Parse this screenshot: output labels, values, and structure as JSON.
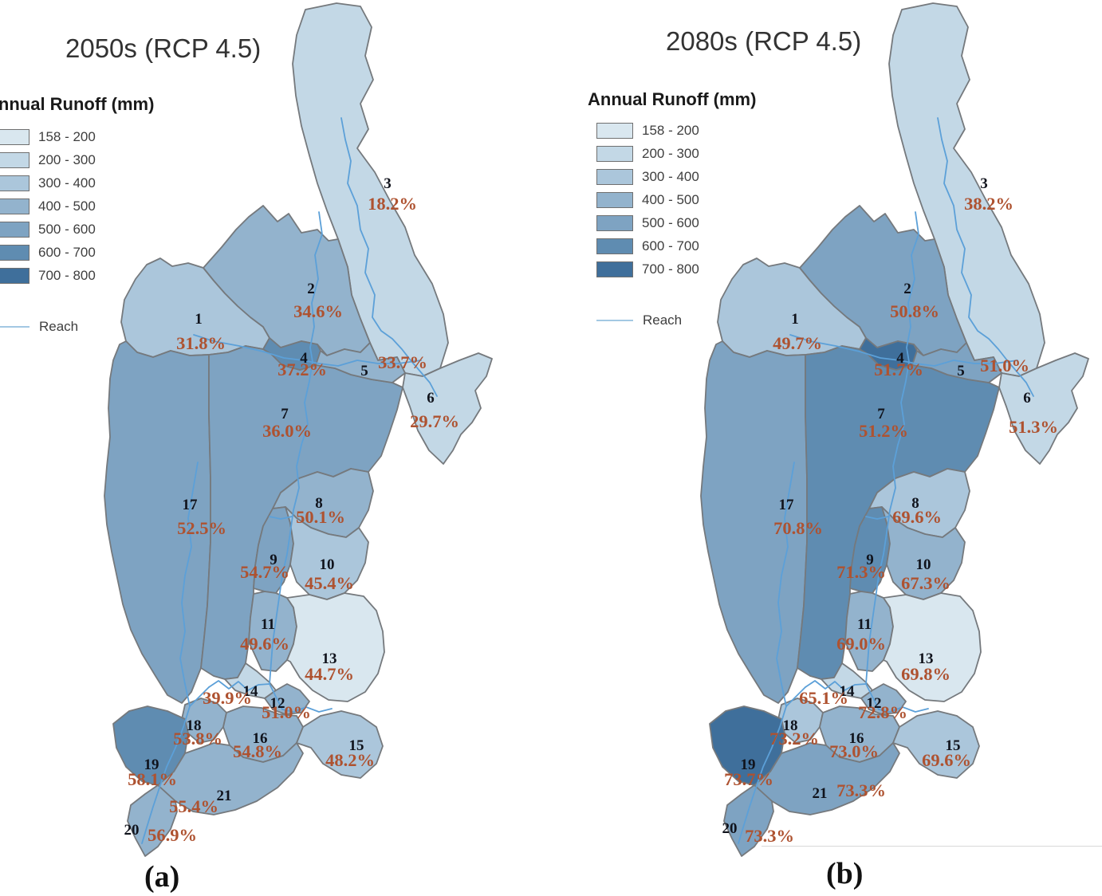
{
  "figure": {
    "legend_title": "Annual Runoff (mm)",
    "reach_label": "Reach",
    "legend_classes": [
      {
        "range": "158 - 200",
        "color": "#d9e7ef"
      },
      {
        "range": "200 - 300",
        "color": "#c3d8e6"
      },
      {
        "range": "300 - 400",
        "color": "#abc6db"
      },
      {
        "range": "400 - 500",
        "color": "#93b3cd"
      },
      {
        "range": "500 - 600",
        "color": "#7ea3c2"
      },
      {
        "range": "600 - 700",
        "color": "#5f8cb1"
      },
      {
        "range": "700 - 800",
        "color": "#3f6f9b"
      }
    ],
    "colors": {
      "region_border": "#75797d",
      "reach_line": "#5ca0d8",
      "legend_reach_line": "#a3c8e3",
      "subbasin_number": "#10131c",
      "percent_label": "#ae5230"
    },
    "panels": [
      {
        "title": "2050s (RCP 4.5)",
        "caption": "(a)",
        "subbasins": [
          {
            "n": "1",
            "pct": "31.8%",
            "cls": 2
          },
          {
            "n": "2",
            "pct": "34.6%",
            "cls": 3
          },
          {
            "n": "3",
            "pct": "18.2%",
            "cls": 1
          },
          {
            "n": "4",
            "pct": "37.2%",
            "cls": 5
          },
          {
            "n": "5",
            "pct": "33.7%",
            "cls": 3
          },
          {
            "n": "6",
            "pct": "29.7%",
            "cls": 1
          },
          {
            "n": "7",
            "pct": "36.0%",
            "cls": 4
          },
          {
            "n": "8",
            "pct": "50.1%",
            "cls": 3
          },
          {
            "n": "9",
            "pct": "54.7%",
            "cls": 4
          },
          {
            "n": "10",
            "pct": "45.4%",
            "cls": 2
          },
          {
            "n": "11",
            "pct": "49.6%",
            "cls": 3
          },
          {
            "n": "12",
            "pct": "51.0%",
            "cls": 3
          },
          {
            "n": "13",
            "pct": "44.7%",
            "cls": 0
          },
          {
            "n": "14",
            "pct": "39.9%",
            "cls": 1
          },
          {
            "n": "15",
            "pct": "48.2%",
            "cls": 2
          },
          {
            "n": "16",
            "pct": "54.8%",
            "cls": 3
          },
          {
            "n": "17",
            "pct": "52.5%",
            "cls": 4
          },
          {
            "n": "18",
            "pct": "53.8%",
            "cls": 3
          },
          {
            "n": "19",
            "pct": "58.1%",
            "cls": 5
          },
          {
            "n": "20",
            "pct": "56.9%",
            "cls": 3
          },
          {
            "n": "21",
            "pct": "55.4%",
            "cls": 3
          }
        ]
      },
      {
        "title": "2080s (RCP 4.5)",
        "caption": "(b)",
        "subbasins": [
          {
            "n": "1",
            "pct": "49.7%",
            "cls": 2
          },
          {
            "n": "2",
            "pct": "50.8%",
            "cls": 4
          },
          {
            "n": "3",
            "pct": "38.2%",
            "cls": 1
          },
          {
            "n": "4",
            "pct": "51.7%",
            "cls": 6
          },
          {
            "n": "5",
            "pct": "51.0%",
            "cls": 4
          },
          {
            "n": "6",
            "pct": "51.3%",
            "cls": 1
          },
          {
            "n": "7",
            "pct": "51.2%",
            "cls": 5
          },
          {
            "n": "8",
            "pct": "69.6%",
            "cls": 2
          },
          {
            "n": "9",
            "pct": "71.3%",
            "cls": 5
          },
          {
            "n": "10",
            "pct": "67.3%",
            "cls": 3
          },
          {
            "n": "11",
            "pct": "69.0%",
            "cls": 3
          },
          {
            "n": "12",
            "pct": "72.8%",
            "cls": 3
          },
          {
            "n": "13",
            "pct": "69.8%",
            "cls": 0
          },
          {
            "n": "14",
            "pct": "65.1%",
            "cls": 1
          },
          {
            "n": "15",
            "pct": "69.6%",
            "cls": 2
          },
          {
            "n": "16",
            "pct": "73.0%",
            "cls": 3
          },
          {
            "n": "17",
            "pct": "70.8%",
            "cls": 4
          },
          {
            "n": "18",
            "pct": "73.2%",
            "cls": 2
          },
          {
            "n": "19",
            "pct": "73.7%",
            "cls": 6
          },
          {
            "n": "20",
            "pct": "73.3%",
            "cls": 4
          },
          {
            "n": "21",
            "pct": "73.3%",
            "cls": 4
          }
        ]
      }
    ]
  },
  "chart_data": [
    {
      "type": "choropleth-map",
      "title": "2050s (RCP 4.5)",
      "legend_title": "Annual Runoff (mm)",
      "legend_classes": [
        "158 - 200",
        "200 - 300",
        "300 - 400",
        "400 - 500",
        "500 - 600",
        "600 - 700",
        "700 - 800"
      ],
      "legend_extra": [
        "Reach"
      ],
      "subbasin_ids": [
        1,
        2,
        3,
        4,
        5,
        6,
        7,
        8,
        9,
        10,
        11,
        12,
        13,
        14,
        15,
        16,
        17,
        18,
        19,
        20,
        21
      ],
      "percent_labels": [
        31.8,
        34.6,
        18.2,
        37.2,
        33.7,
        29.7,
        36.0,
        50.1,
        54.7,
        45.4,
        49.6,
        51.0,
        44.7,
        39.9,
        48.2,
        54.8,
        52.5,
        53.8,
        58.1,
        56.9,
        55.4
      ]
    },
    {
      "type": "choropleth-map",
      "title": "2080s (RCP 4.5)",
      "legend_title": "Annual Runoff (mm)",
      "legend_classes": [
        "158 - 200",
        "200 - 300",
        "300 - 400",
        "400 - 500",
        "500 - 600",
        "600 - 700",
        "700 - 800"
      ],
      "legend_extra": [
        "Reach"
      ],
      "subbasin_ids": [
        1,
        2,
        3,
        4,
        5,
        6,
        7,
        8,
        9,
        10,
        11,
        12,
        13,
        14,
        15,
        16,
        17,
        18,
        19,
        20,
        21
      ],
      "percent_labels": [
        49.7,
        50.8,
        38.2,
        51.7,
        51.0,
        51.3,
        51.2,
        69.6,
        71.3,
        67.3,
        69.0,
        72.8,
        69.8,
        65.1,
        69.6,
        73.0,
        70.8,
        73.2,
        73.7,
        73.3,
        73.3
      ]
    }
  ]
}
